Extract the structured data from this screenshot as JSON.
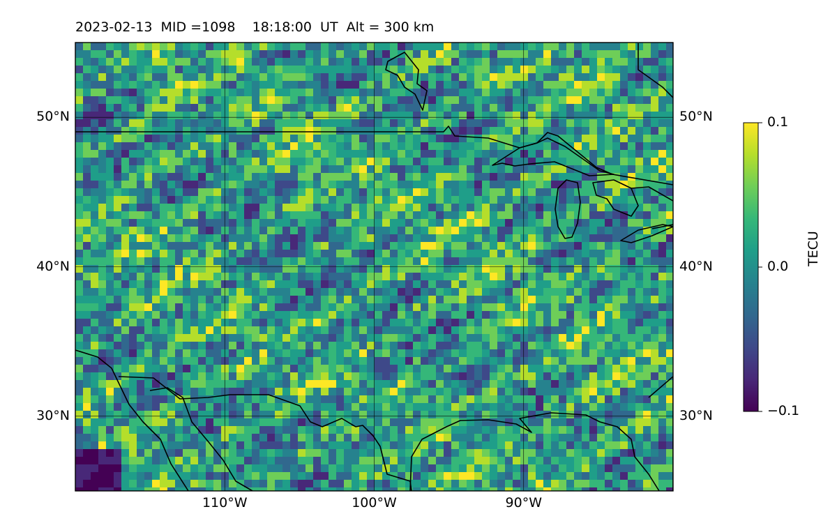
{
  "header": {
    "date": "2023-02-13",
    "mid": "MID =1098",
    "time": "18:18:00  UT",
    "altitude": "Alt = 300 km"
  },
  "map": {
    "lon_range": [
      -120,
      -80
    ],
    "lat_range": [
      25,
      55
    ],
    "lon_ticks": [
      {
        "value": -110,
        "label": "110°W"
      },
      {
        "value": -100,
        "label": "100°W"
      },
      {
        "value": -90,
        "label": "90°W"
      }
    ],
    "lat_ticks": [
      {
        "value": 50,
        "label": "50°N"
      },
      {
        "value": 40,
        "label": "40°N"
      },
      {
        "value": 30,
        "label": "30°N"
      }
    ],
    "grid": true,
    "colormap": "viridis"
  },
  "colorbar": {
    "label": "TECU",
    "range": [
      -0.1,
      0.1
    ],
    "ticks": [
      {
        "value": 0.1,
        "label": "0.1"
      },
      {
        "value": 0.0,
        "label": "0.0"
      },
      {
        "value": -0.1,
        "label": "−0.1"
      }
    ],
    "colors": [
      "#440154",
      "#482878",
      "#3e4989",
      "#31688e",
      "#26828e",
      "#1f9e89",
      "#35b779",
      "#6ece58",
      "#b5de2b",
      "#fde725"
    ]
  }
}
